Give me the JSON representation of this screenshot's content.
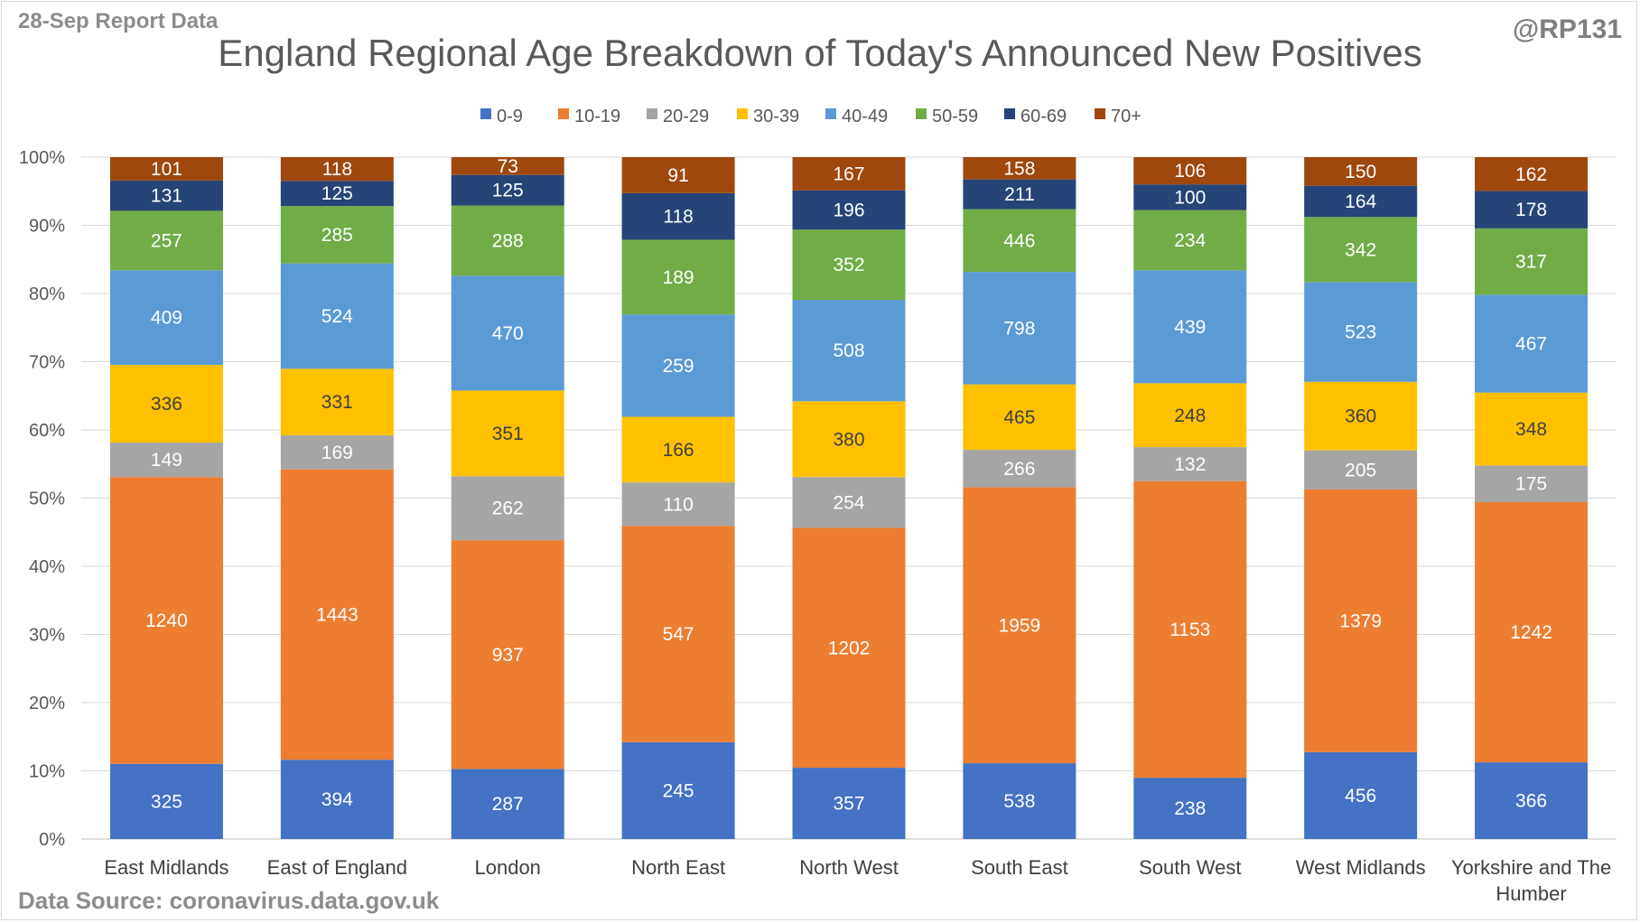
{
  "header": {
    "report_date": "28-Sep Report Data",
    "handle": "@RP131",
    "source": "Data Source: coronavirus.data.gov.uk"
  },
  "chart_data": {
    "type": "bar",
    "stacking": "percent",
    "title": "England Regional Age Breakdown of Today's Announced New Positives",
    "legend_position": "top",
    "grid": true,
    "ylim": [
      0,
      100
    ],
    "yticks": [
      "0%",
      "10%",
      "20%",
      "30%",
      "40%",
      "50%",
      "60%",
      "70%",
      "80%",
      "90%",
      "100%"
    ],
    "categories": [
      "East Midlands",
      "East of England",
      "London",
      "North East",
      "North West",
      "South East",
      "South West",
      "West Midlands",
      "Yorkshire and The Humber"
    ],
    "series": [
      {
        "name": "0-9",
        "color": "#4472c4",
        "label_color": "#ffffff",
        "values": [
          325,
          394,
          287,
          245,
          357,
          538,
          238,
          456,
          366
        ]
      },
      {
        "name": "10-19",
        "color": "#ed7d31",
        "label_color": "#ffffff",
        "values": [
          1240,
          1443,
          937,
          547,
          1202,
          1959,
          1153,
          1379,
          1242
        ]
      },
      {
        "name": "20-29",
        "color": "#a5a5a5",
        "label_color": "#ffffff",
        "values": [
          149,
          169,
          262,
          110,
          254,
          266,
          132,
          205,
          175
        ]
      },
      {
        "name": "30-39",
        "color": "#ffc000",
        "label_color": "#404040",
        "values": [
          336,
          331,
          351,
          166,
          380,
          465,
          248,
          360,
          348
        ]
      },
      {
        "name": "40-49",
        "color": "#5b9bd5",
        "label_color": "#ffffff",
        "values": [
          409,
          524,
          470,
          259,
          508,
          798,
          439,
          523,
          467
        ]
      },
      {
        "name": "50-59",
        "color": "#70ad47",
        "label_color": "#ffffff",
        "values": [
          257,
          285,
          288,
          189,
          352,
          446,
          234,
          342,
          317
        ]
      },
      {
        "name": "60-69",
        "color": "#264478",
        "label_color": "#ffffff",
        "values": [
          131,
          125,
          125,
          118,
          196,
          211,
          100,
          164,
          178
        ]
      },
      {
        "name": "70+",
        "color": "#9e480e",
        "label_color": "#ffffff",
        "values": [
          101,
          118,
          73,
          91,
          167,
          158,
          106,
          150,
          162
        ]
      }
    ]
  }
}
